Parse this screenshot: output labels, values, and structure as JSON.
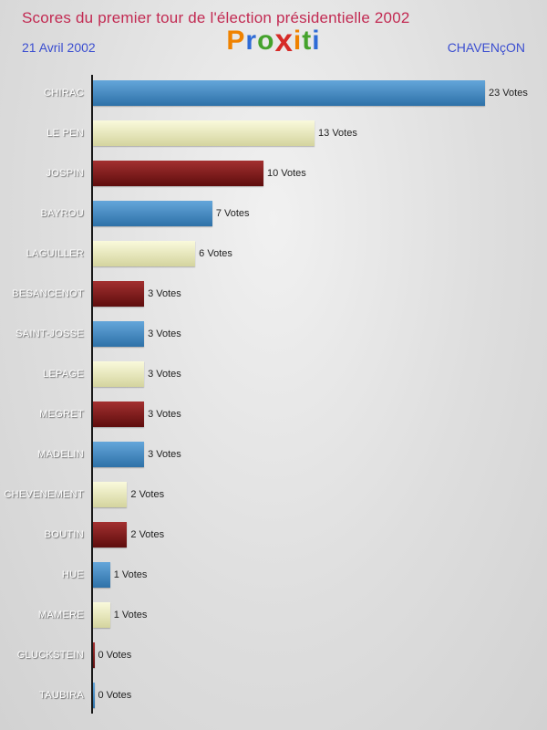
{
  "header": {
    "title": "Scores du premier tour de l'élection présidentielle 2002",
    "date": "21 Avril 2002",
    "location": "CHAVENçON",
    "logo_letters": [
      {
        "ch": "P",
        "color": "#ef8200",
        "big": false
      },
      {
        "ch": "r",
        "color": "#2e6bd6",
        "big": false
      },
      {
        "ch": "o",
        "color": "#44a22c",
        "big": false
      },
      {
        "ch": "x",
        "color": "#d62b28",
        "big": true
      },
      {
        "ch": "i",
        "color": "#ef8200",
        "big": false
      },
      {
        "ch": "t",
        "color": "#44a22c",
        "big": false
      },
      {
        "ch": "i",
        "color": "#2e6bd6",
        "big": false
      }
    ]
  },
  "chart_data": {
    "type": "bar",
    "orientation": "horizontal",
    "title": "Scores du premier tour de l'élection présidentielle 2002",
    "categories": [
      "CHIRAC",
      "LE PEN",
      "JOSPIN",
      "BAYROU",
      "LAGUILLER",
      "BESANCENOT",
      "SAINT-JOSSE",
      "LEPAGE",
      "MEGRET",
      "MADELIN",
      "CHEVENEMENT",
      "BOUTIN",
      "HUE",
      "MAMERE",
      "GLUCKSTEIN",
      "TAUBIRA"
    ],
    "values": [
      23,
      13,
      10,
      7,
      6,
      3,
      3,
      3,
      3,
      3,
      2,
      2,
      1,
      1,
      0,
      0
    ],
    "unit": "Votes",
    "value_labels": [
      "23 Votes",
      "13 Votes",
      "10 Votes",
      "7 Votes",
      "6 Votes",
      "3 Votes",
      "3 Votes",
      "3 Votes",
      "3 Votes",
      "3 Votes",
      "2 Votes",
      "2 Votes",
      "1 Votes",
      "1 Votes",
      "0 Votes",
      "0 Votes"
    ],
    "xlim": [
      0,
      23
    ],
    "grid": false,
    "legend": false,
    "color_cycle": [
      "blue",
      "cream",
      "red"
    ],
    "colors": {
      "blue": [
        "#64a6da",
        "#2e71a8"
      ],
      "cream": [
        "#fafadc",
        "#d4d49e"
      ],
      "red": [
        "#a33030",
        "#5e0d0d"
      ]
    },
    "axis_color": "#181818",
    "label_color": "#ffffff",
    "value_text_color": "#222222"
  }
}
